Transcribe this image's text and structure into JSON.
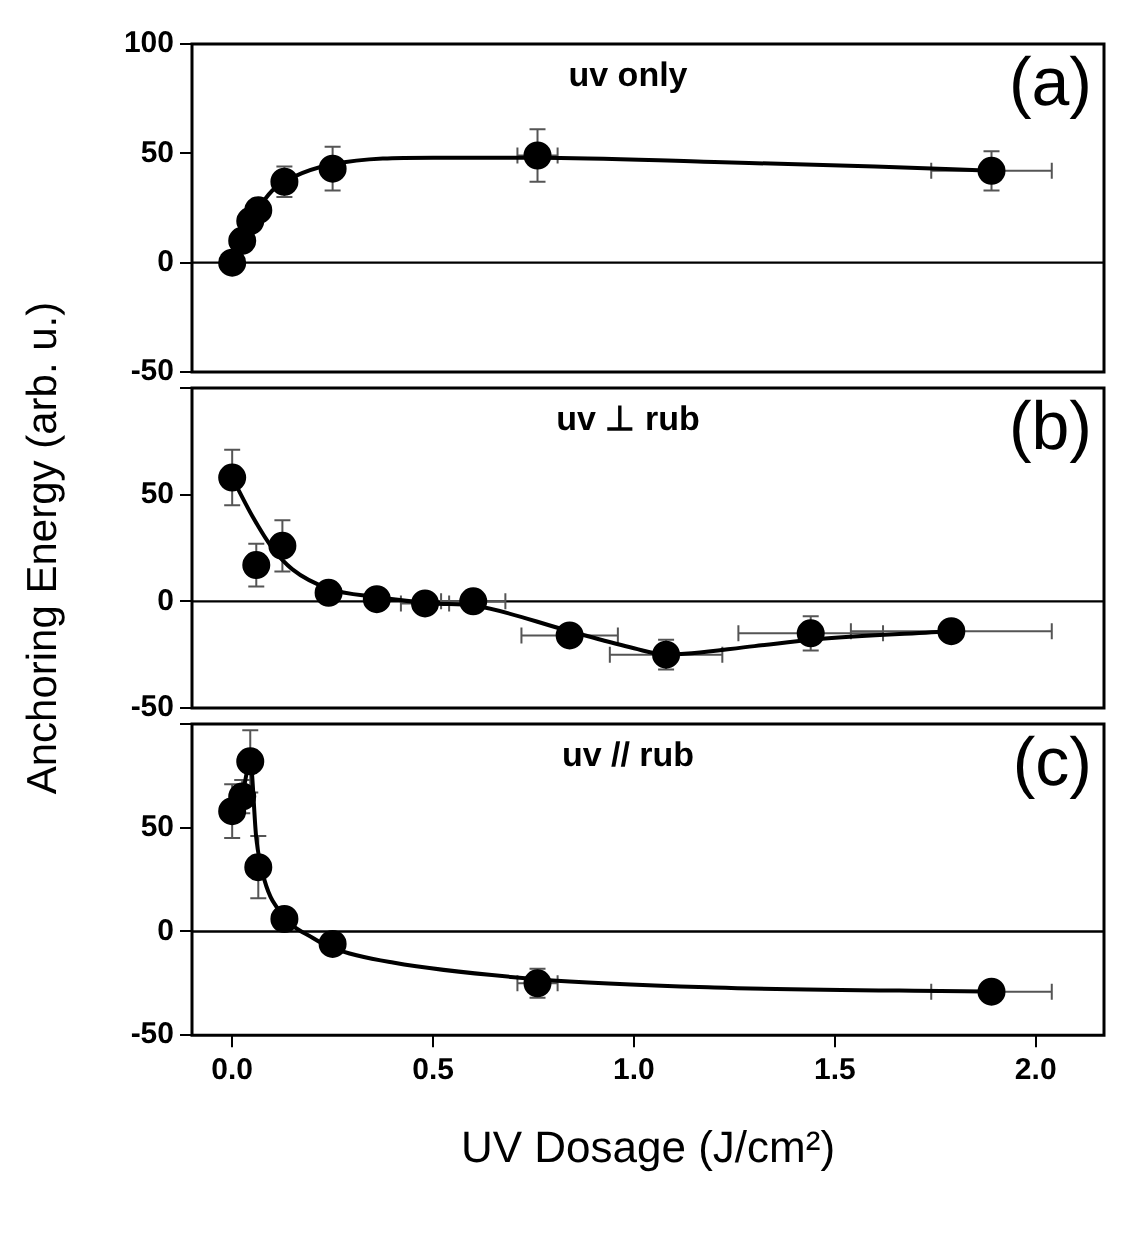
{
  "chart_data": [
    {
      "type": "scatter",
      "annotations": [
        "uv only",
        "(a)"
      ],
      "xlim": [
        -0.1,
        2.17
      ],
      "xticks": [
        {
          "value": 0,
          "label": null
        },
        {
          "value": 0.5,
          "label": null
        },
        {
          "value": 1,
          "label": null
        },
        {
          "value": 1.5,
          "label": null
        },
        {
          "value": 2,
          "label": null
        }
      ],
      "ylim": [
        -50,
        100
      ],
      "yticks": [
        -50,
        0,
        50,
        100
      ],
      "tick_labels": "y",
      "ref_lines": [
        {
          "axis": "y",
          "value": 0,
          "color": "#000000"
        }
      ],
      "series": [
        {
          "type": "scatter",
          "marker": "circle",
          "color": "#000000",
          "x": [
            0,
            0.025,
            0.045,
            0.065,
            0.13,
            0.25,
            0.76,
            1.89
          ],
          "values": [
            0,
            10,
            19,
            24,
            37,
            43,
            49,
            42
          ],
          "errors": [
            null,
            null,
            null,
            null,
            7,
            10,
            12,
            9
          ],
          "xerrors": [
            null,
            null,
            null,
            null,
            null,
            null,
            0.05,
            0.15
          ]
        },
        {
          "type": "line",
          "marker": "none",
          "color": "#000000",
          "x": [
            0,
            0.03,
            0.06,
            0.1,
            0.15,
            0.25,
            0.5,
            0.76,
            1.2,
            1.6,
            1.89
          ],
          "values": [
            0,
            12,
            23,
            33,
            39,
            45,
            48,
            48,
            46,
            44,
            42
          ]
        }
      ]
    },
    {
      "type": "scatter",
      "annotations": [
        "uv ⊥ rub",
        "(b)"
      ],
      "ylabel": "Anchoring Energy (arb. u.)",
      "xlim": [
        -0.1,
        2.17
      ],
      "xticks": [
        {
          "value": 0,
          "label": null
        },
        {
          "value": 0.5,
          "label": null
        },
        {
          "value": 1,
          "label": null
        },
        {
          "value": 1.5,
          "label": null
        },
        {
          "value": 2,
          "label": null
        }
      ],
      "ylim": [
        -50,
        100
      ],
      "yticks": [
        -50,
        0,
        50,
        {
          "value": 100,
          "label": null
        }
      ],
      "tick_labels": "y",
      "ref_lines": [
        {
          "axis": "y",
          "value": 0,
          "color": "#000000"
        }
      ],
      "series": [
        {
          "type": "scatter",
          "marker": "circle",
          "color": "#000000",
          "x": [
            0,
            0.06,
            0.125,
            0.24,
            0.36,
            0.48,
            0.6,
            0.84,
            1.08,
            1.44,
            1.79
          ],
          "values": [
            58,
            17,
            26,
            4,
            1,
            -1,
            0,
            -16,
            -25,
            -15,
            -14
          ],
          "errors": [
            13,
            10,
            12,
            null,
            null,
            null,
            null,
            null,
            7,
            8,
            null
          ],
          "xerrors": [
            null,
            null,
            null,
            null,
            null,
            0.06,
            0.08,
            0.12,
            0.14,
            0.18,
            0.25
          ]
        },
        {
          "type": "line",
          "marker": "none",
          "color": "#000000",
          "x": [
            0,
            0.05,
            0.1,
            0.15,
            0.24,
            0.36,
            0.5,
            0.6,
            0.84,
            1.0,
            1.08,
            1.3,
            1.44,
            1.79
          ],
          "values": [
            58,
            40,
            25,
            15,
            6,
            2,
            -1,
            -2,
            -14,
            -22,
            -25,
            -21,
            -18,
            -14
          ]
        }
      ]
    },
    {
      "type": "scatter",
      "annotations": [
        "uv // rub",
        "(c)"
      ],
      "xlabel": "UV Dosage (J/cm²)",
      "xlim": [
        -0.1,
        2.17
      ],
      "xticks": [
        {
          "value": 0,
          "label": "0.0"
        },
        {
          "value": 0.5,
          "label": "0.5"
        },
        {
          "value": 1,
          "label": "1.0"
        },
        {
          "value": 1.5,
          "label": "1.5"
        },
        {
          "value": 2,
          "label": "2.0"
        }
      ],
      "ylim": [
        -50,
        100
      ],
      "yticks": [
        -50,
        0,
        50,
        {
          "value": 100,
          "label": null
        }
      ],
      "ref_lines": [
        {
          "axis": "y",
          "value": 0,
          "color": "#000000"
        }
      ],
      "series": [
        {
          "type": "scatter",
          "marker": "circle",
          "color": "#000000",
          "x": [
            0,
            0.025,
            0.045,
            0.065,
            0.13,
            0.25,
            0.76,
            1.89
          ],
          "values": [
            58,
            65,
            82,
            31,
            6,
            -6,
            -25,
            -29
          ],
          "errors": [
            13,
            8,
            15,
            15,
            null,
            null,
            7,
            null
          ],
          "xerrors": [
            null,
            null,
            null,
            null,
            null,
            null,
            0.05,
            0.15
          ]
        },
        {
          "type": "line",
          "marker": "none",
          "color": "#000000",
          "x": [
            0,
            0.025,
            0.045,
            0.06,
            0.08,
            0.13,
            0.2,
            0.25,
            0.4,
            0.76,
            1.2,
            1.89
          ],
          "values": [
            58,
            66,
            82,
            45,
            25,
            7,
            -3,
            -8,
            -15,
            -23,
            -27,
            -29
          ]
        }
      ]
    }
  ]
}
